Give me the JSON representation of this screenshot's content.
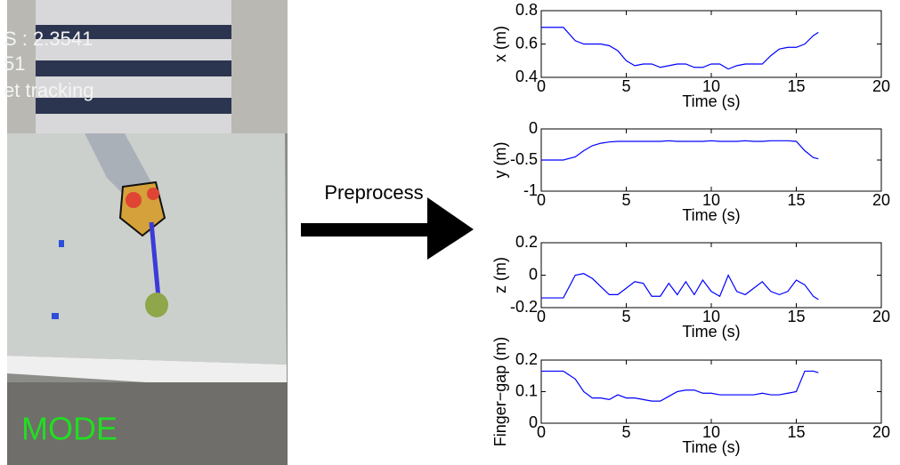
{
  "figure": {
    "overlay_lines": [
      "S : 2.3541",
      "51",
      "et tracking"
    ],
    "mode_label": "MODE",
    "arrow_label": "Preprocess"
  },
  "chart_data": [
    {
      "type": "line",
      "ylabel": "x (m)",
      "xlabel": "Time (s)",
      "xlim": [
        0,
        20
      ],
      "xticks": [
        0,
        5,
        10,
        15,
        20
      ],
      "ylim": [
        0.4,
        0.8
      ],
      "yticks": [
        0.4,
        0.6,
        0.8
      ],
      "x": [
        0,
        1.3,
        2,
        2.5,
        3,
        3.5,
        4,
        4.5,
        5,
        5.5,
        6,
        6.5,
        7,
        7.5,
        8,
        8.5,
        9,
        9.5,
        10,
        10.5,
        11,
        11.5,
        12,
        12.5,
        13,
        13.5,
        14,
        14.5,
        15,
        15.5,
        16,
        16.3
      ],
      "series": [
        {
          "color": "#0000ff",
          "values": [
            0.7,
            0.7,
            0.62,
            0.6,
            0.6,
            0.6,
            0.59,
            0.56,
            0.5,
            0.47,
            0.48,
            0.48,
            0.46,
            0.47,
            0.48,
            0.48,
            0.46,
            0.46,
            0.48,
            0.48,
            0.45,
            0.47,
            0.48,
            0.48,
            0.48,
            0.53,
            0.57,
            0.58,
            0.58,
            0.6,
            0.65,
            0.67
          ]
        }
      ]
    },
    {
      "type": "line",
      "ylabel": "y (m)",
      "xlabel": "Time (s)",
      "xlim": [
        0,
        20
      ],
      "xticks": [
        0,
        5,
        10,
        15,
        20
      ],
      "ylim": [
        -1,
        0
      ],
      "yticks": [
        -1,
        -0.5,
        0
      ],
      "x": [
        0,
        1.3,
        2,
        2.5,
        3,
        3.5,
        4,
        4.5,
        5,
        5.5,
        6,
        6.5,
        7,
        7.5,
        8,
        8.5,
        9,
        9.5,
        10,
        10.5,
        11,
        11.5,
        12,
        12.5,
        13,
        13.5,
        14,
        14.5,
        15,
        15.5,
        16,
        16.3
      ],
      "series": [
        {
          "color": "#0000ff",
          "values": [
            -0.5,
            -0.5,
            -0.45,
            -0.35,
            -0.27,
            -0.23,
            -0.21,
            -0.2,
            -0.2,
            -0.2,
            -0.2,
            -0.2,
            -0.2,
            -0.19,
            -0.2,
            -0.2,
            -0.2,
            -0.2,
            -0.19,
            -0.2,
            -0.2,
            -0.2,
            -0.19,
            -0.2,
            -0.2,
            -0.19,
            -0.19,
            -0.19,
            -0.2,
            -0.35,
            -0.46,
            -0.48
          ]
        }
      ]
    },
    {
      "type": "line",
      "ylabel": "z (m)",
      "xlabel": "Time (s)",
      "xlim": [
        0,
        20
      ],
      "xticks": [
        0,
        5,
        10,
        15,
        20
      ],
      "ylim": [
        -0.2,
        0.2
      ],
      "yticks": [
        -0.2,
        0,
        0.2
      ],
      "x": [
        0,
        1.3,
        2,
        2.5,
        3,
        3.5,
        4,
        4.5,
        5,
        5.5,
        6,
        6.5,
        7,
        7.5,
        8,
        8.5,
        9,
        9.5,
        10,
        10.5,
        11,
        11.5,
        12,
        12.5,
        13,
        13.5,
        14,
        14.5,
        15,
        15.5,
        16,
        16.3
      ],
      "series": [
        {
          "color": "#0000ff",
          "values": [
            -0.14,
            -0.14,
            0,
            0.01,
            -0.02,
            -0.07,
            -0.12,
            -0.12,
            -0.08,
            -0.04,
            -0.05,
            -0.13,
            -0.13,
            -0.05,
            -0.12,
            -0.04,
            -0.12,
            -0.03,
            -0.1,
            -0.13,
            0,
            -0.1,
            -0.12,
            -0.08,
            -0.04,
            -0.1,
            -0.12,
            -0.1,
            -0.03,
            -0.06,
            -0.13,
            -0.15
          ]
        }
      ]
    },
    {
      "type": "line",
      "ylabel": "Finger−gap (m)",
      "xlabel": "Time (s)",
      "xlim": [
        0,
        20
      ],
      "xticks": [
        0,
        5,
        10,
        15,
        20
      ],
      "ylim": [
        0,
        0.2
      ],
      "yticks": [
        0,
        0.1,
        0.2
      ],
      "x": [
        0,
        1.3,
        2,
        2.5,
        3,
        3.5,
        4,
        4.5,
        5,
        5.5,
        6,
        6.5,
        7,
        7.5,
        8,
        8.5,
        9,
        9.5,
        10,
        10.5,
        11,
        11.5,
        12,
        12.5,
        13,
        13.5,
        14,
        14.5,
        15,
        15.5,
        16,
        16.3
      ],
      "series": [
        {
          "color": "#0000ff",
          "values": [
            0.165,
            0.165,
            0.14,
            0.1,
            0.08,
            0.08,
            0.075,
            0.09,
            0.08,
            0.08,
            0.075,
            0.07,
            0.07,
            0.085,
            0.1,
            0.105,
            0.105,
            0.095,
            0.095,
            0.09,
            0.09,
            0.09,
            0.09,
            0.09,
            0.095,
            0.09,
            0.09,
            0.095,
            0.1,
            0.165,
            0.165,
            0.16
          ]
        }
      ]
    }
  ]
}
